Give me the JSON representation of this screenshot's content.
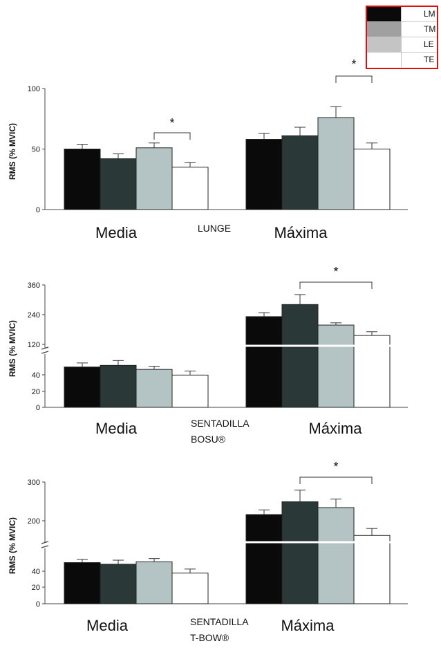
{
  "legend": {
    "entries": [
      {
        "label": "LM",
        "color": "#0a0a0a"
      },
      {
        "label": "TM",
        "color": "#a0a0a0"
      },
      {
        "label": "LE",
        "color": "#c4c4c4"
      },
      {
        "label": "TE",
        "color": "#ffffff"
      }
    ]
  },
  "chart_data": [
    {
      "type": "bar",
      "exercise_label": "LUNGE",
      "ylabel": "RMS (% MVIC)",
      "categories": [
        "Media",
        "Máxima"
      ],
      "ylim": [
        0,
        100
      ],
      "yticks": [
        0,
        50,
        100
      ],
      "series": [
        {
          "name": "LM",
          "values": [
            50,
            58
          ],
          "errors": [
            4,
            5
          ],
          "color": "#0a0a0a"
        },
        {
          "name": "TM",
          "values": [
            42,
            61
          ],
          "errors": [
            4,
            7
          ],
          "color": "#2b3838"
        },
        {
          "name": "LE",
          "values": [
            51,
            76
          ],
          "errors": [
            4,
            9
          ],
          "color": "#b4c4c4"
        },
        {
          "name": "TE",
          "values": [
            35,
            50
          ],
          "errors": [
            4,
            5
          ],
          "color": "#ffffff"
        }
      ],
      "significance": [
        {
          "group": "Media",
          "from": "LE",
          "to": "TE",
          "label": "*"
        },
        {
          "group": "Máxima",
          "from": "LE",
          "to": "TE",
          "label": "*"
        }
      ]
    },
    {
      "type": "bar",
      "exercise_label": [
        "SENTADILLA",
        "BOSU®"
      ],
      "ylabel": "RMS (% MVIC)",
      "categories": [
        "Media",
        "Máxima"
      ],
      "yticks": [
        0,
        20,
        40,
        120,
        240,
        360
      ],
      "axis_break": true,
      "series": [
        {
          "name": "LM",
          "values": [
            50,
            232
          ],
          "errors": [
            5,
            16
          ],
          "color": "#0a0a0a"
        },
        {
          "name": "TM",
          "values": [
            52,
            281
          ],
          "errors": [
            6,
            40
          ],
          "color": "#2b3838"
        },
        {
          "name": "LE",
          "values": [
            47,
            198
          ],
          "errors": [
            4,
            9
          ],
          "color": "#b4c4c4"
        },
        {
          "name": "TE",
          "values": [
            40,
            156
          ],
          "errors": [
            5,
            15
          ],
          "color": "#ffffff"
        }
      ],
      "significance": [
        {
          "group": "Máxima",
          "from": "TM",
          "to": "TE",
          "label": "*"
        }
      ]
    },
    {
      "type": "bar",
      "exercise_label": [
        "SENTADILLA",
        "T-BOW®"
      ],
      "ylabel": "RMS (% MVIC)",
      "categories": [
        "Media",
        "Máxima"
      ],
      "yticks": [
        0,
        20,
        40,
        200,
        300
      ],
      "axis_break": true,
      "series": [
        {
          "name": "LM",
          "values": [
            51,
            216
          ],
          "errors": [
            4,
            12
          ],
          "color": "#0a0a0a"
        },
        {
          "name": "TM",
          "values": [
            49,
            249
          ],
          "errors": [
            5,
            30
          ],
          "color": "#2b3838"
        },
        {
          "name": "LE",
          "values": [
            52,
            234
          ],
          "errors": [
            4,
            22
          ],
          "color": "#b4c4c4"
        },
        {
          "name": "TE",
          "values": [
            38,
            162
          ],
          "errors": [
            5,
            18
          ],
          "color": "#ffffff"
        }
      ],
      "significance": [
        {
          "group": "Máxima",
          "from": "TM",
          "to": "TE",
          "label": "*"
        }
      ]
    }
  ]
}
